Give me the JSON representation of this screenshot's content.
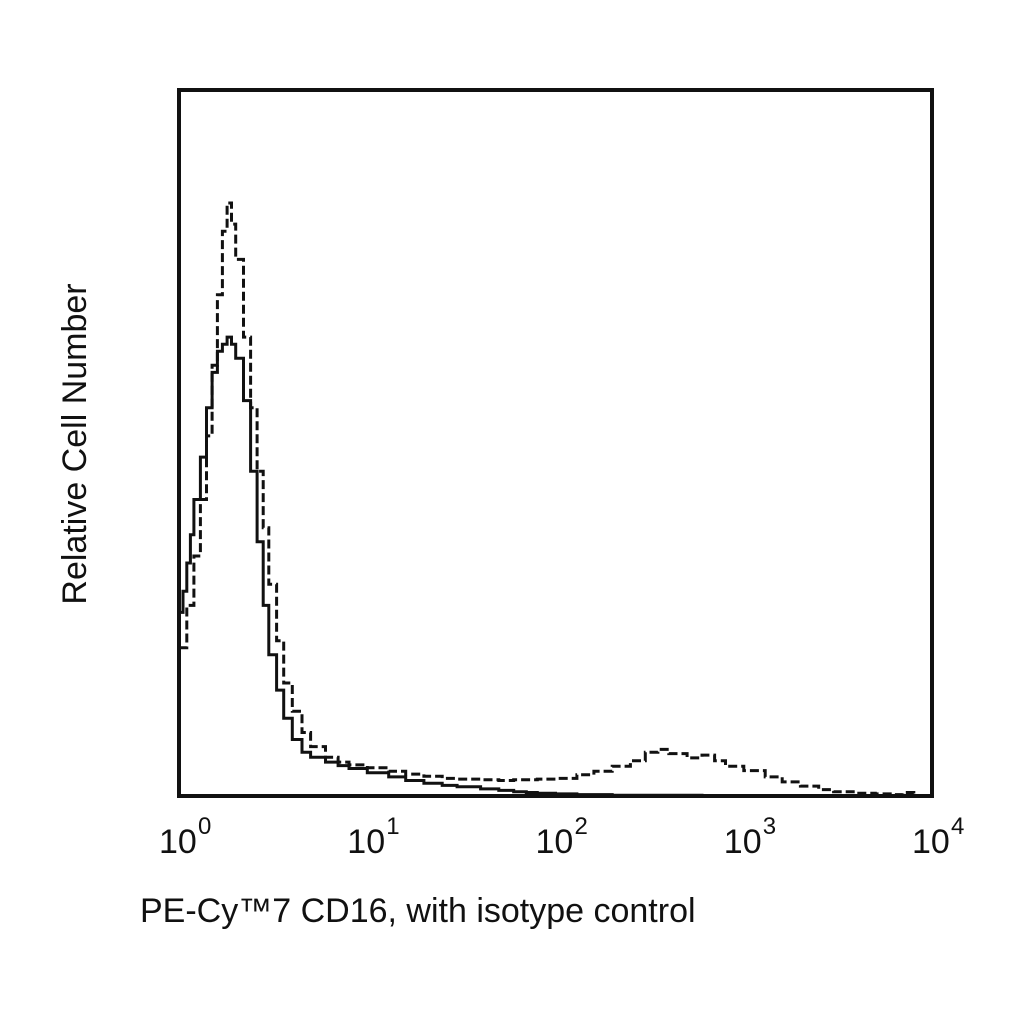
{
  "chart_data": {
    "type": "line",
    "title": "",
    "xlabel": "PE-Cy™7 CD16, with isotype control",
    "ylabel": "Relative Cell Number",
    "xscale": "log",
    "xlim": [
      1,
      10000
    ],
    "ylim": [
      0,
      100
    ],
    "grid": false,
    "legend": "none",
    "x_ticks": [
      {
        "base": "10",
        "exp": "0",
        "value": 1
      },
      {
        "base": "10",
        "exp": "1",
        "value": 10
      },
      {
        "base": "10",
        "exp": "2",
        "value": 100
      },
      {
        "base": "10",
        "exp": "3",
        "value": 1000
      },
      {
        "base": "10",
        "exp": "4",
        "value": 10000
      }
    ],
    "series": [
      {
        "style": "solid",
        "color": "#111111",
        "x": [
          1.0,
          1.05,
          1.1,
          1.15,
          1.2,
          1.3,
          1.4,
          1.5,
          1.6,
          1.7,
          1.8,
          1.9,
          2.0,
          2.2,
          2.4,
          2.6,
          2.8,
          3.0,
          3.3,
          3.6,
          4.0,
          4.5,
          5.0,
          6.0,
          7.0,
          8.0,
          10,
          13,
          16,
          20,
          25,
          30,
          40,
          50,
          60,
          70,
          80,
          100,
          130,
          160,
          200,
          300,
          400,
          600,
          800,
          1000,
          1500,
          2000,
          3000
        ],
        "y": [
          26,
          29,
          33,
          37,
          42,
          48,
          55,
          60,
          63,
          64,
          65,
          64,
          62,
          56,
          46,
          36,
          27,
          20,
          15,
          11,
          8.0,
          6.2,
          5.5,
          4.8,
          4.3,
          3.9,
          3.3,
          2.7,
          2.2,
          1.8,
          1.5,
          1.3,
          1.0,
          0.8,
          0.6,
          0.5,
          0.4,
          0.3,
          0.2,
          0.2,
          0.1,
          0.1,
          0.1,
          0.0,
          0.0,
          0.0,
          0.0,
          0.0,
          0.0
        ]
      },
      {
        "style": "dashed",
        "color": "#111111",
        "x": [
          1.0,
          1.1,
          1.2,
          1.3,
          1.4,
          1.5,
          1.6,
          1.7,
          1.8,
          1.9,
          2.0,
          2.2,
          2.4,
          2.6,
          2.8,
          3.0,
          3.3,
          3.6,
          4.0,
          4.5,
          5.0,
          6.0,
          7.0,
          8.0,
          10,
          13,
          16,
          20,
          25,
          30,
          40,
          50,
          60,
          80,
          100,
          130,
          160,
          200,
          250,
          300,
          350,
          400,
          500,
          600,
          700,
          800,
          1000,
          1300,
          1600,
          2000,
          2500,
          3000,
          4000,
          5000,
          6000,
          7000,
          8000
        ],
        "y": [
          21,
          27,
          34,
          42,
          51,
          61,
          71,
          80,
          84,
          81,
          76,
          65,
          55,
          46,
          38,
          30,
          22,
          16,
          12,
          9.0,
          7.0,
          5.5,
          4.8,
          4.4,
          4.0,
          3.5,
          3.1,
          2.8,
          2.5,
          2.4,
          2.3,
          2.2,
          2.3,
          2.4,
          2.5,
          3.0,
          3.5,
          4.2,
          5.0,
          6.2,
          6.6,
          6.0,
          5.4,
          5.8,
          5.0,
          4.2,
          3.6,
          2.7,
          2.0,
          1.4,
          0.9,
          0.6,
          0.4,
          0.3,
          0.2,
          0.5,
          0.1
        ]
      }
    ]
  }
}
